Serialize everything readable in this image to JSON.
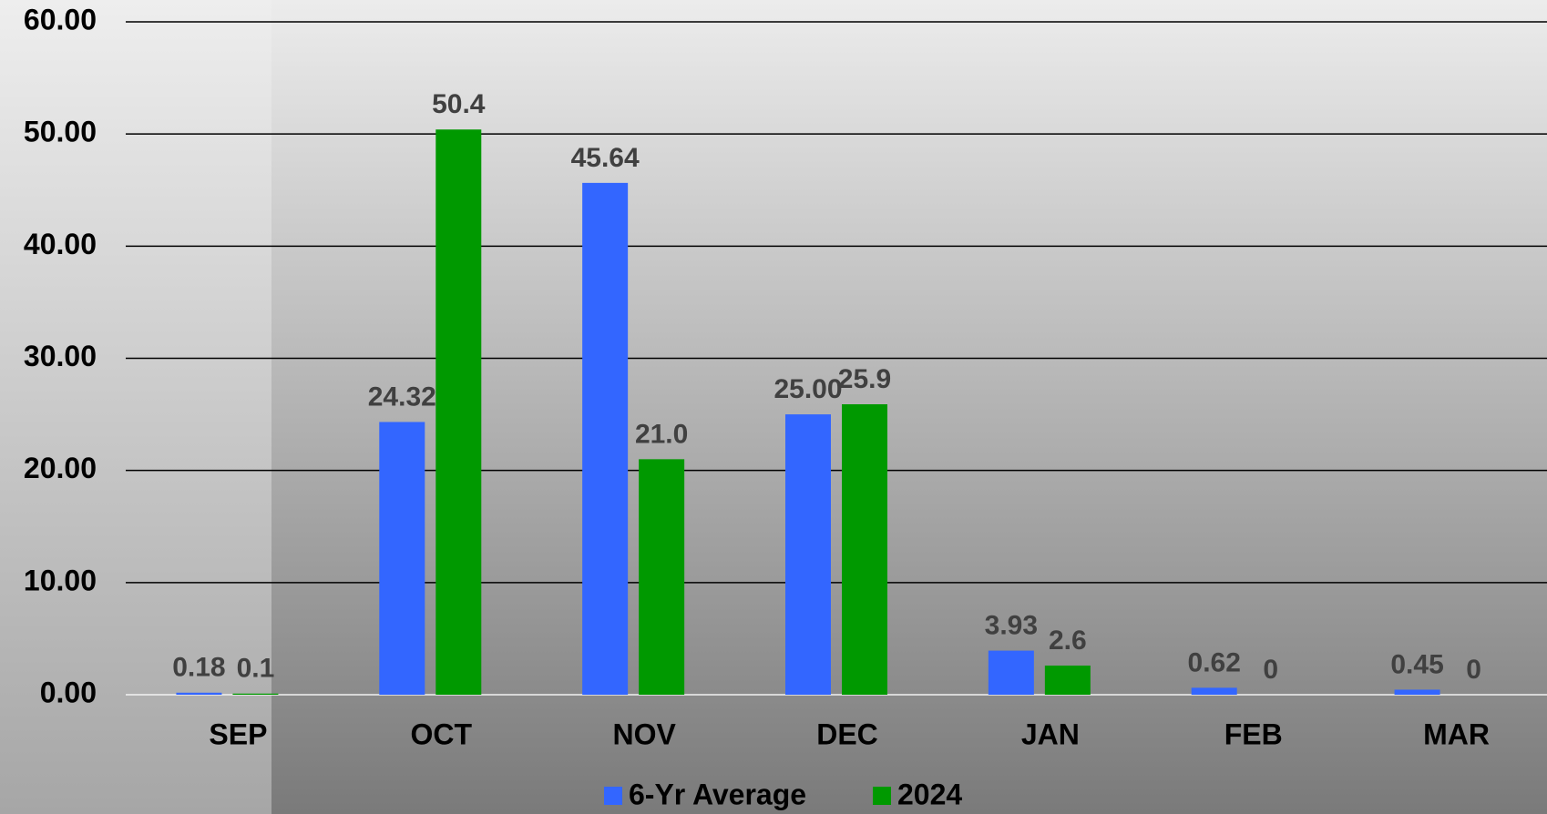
{
  "chart_data": {
    "type": "bar",
    "categories": [
      "SEP",
      "OCT",
      "NOV",
      "DEC",
      "JAN",
      "FEB",
      "MAR"
    ],
    "series": [
      {
        "name": "6-Yr Average",
        "color": "#3366ff",
        "values": [
          0.18,
          24.32,
          45.64,
          25.0,
          3.93,
          0.62,
          0.45
        ],
        "value_labels": [
          "0.18",
          "24.32",
          "45.64",
          "25.00",
          "3.93",
          "0.62",
          "0.45"
        ]
      },
      {
        "name": "2024",
        "color": "#009900",
        "values": [
          0.1,
          50.4,
          21.0,
          25.9,
          2.6,
          0,
          0
        ],
        "value_labels": [
          "0.1",
          "50.4",
          "21.0",
          "25.9",
          "2.6",
          "0",
          "0"
        ]
      }
    ],
    "ylim": [
      0,
      60
    ],
    "yticks": [
      {
        "value": 0,
        "label": "0.00"
      },
      {
        "value": 10,
        "label": "10.00"
      },
      {
        "value": 20,
        "label": "20.00"
      },
      {
        "value": 30,
        "label": "30.00"
      },
      {
        "value": 40,
        "label": "40.00"
      },
      {
        "value": 50,
        "label": "50.00"
      },
      {
        "value": 60,
        "label": "60.00"
      }
    ],
    "grid": true,
    "legend": "bottom"
  }
}
